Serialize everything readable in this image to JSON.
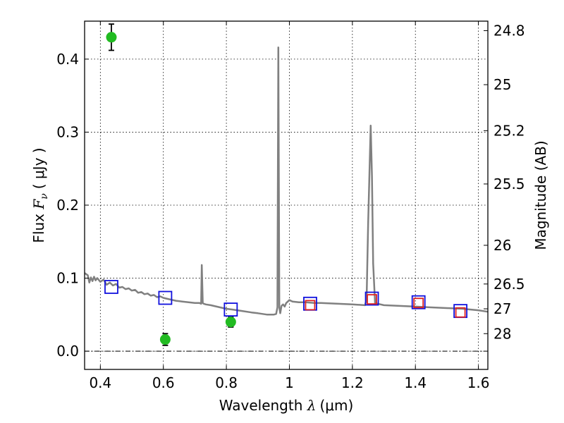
{
  "chart_data": {
    "type": "scatter",
    "title": "",
    "xlabel": "Wavelength  λ (μm)",
    "xlabel_parts": {
      "prefix": "Wavelength  ",
      "symbol": "λ",
      "unit": "(μm)"
    },
    "ylabel": "Flux  Fν ( μJy )",
    "ylabel_parts": {
      "prefix": "Flux  ",
      "symbol": "F",
      "subscript": "ν",
      "unit": "( μJy )"
    },
    "y2label": "Magnitude (AB)",
    "xlim": [
      0.35,
      1.63
    ],
    "ylim": [
      -0.025,
      0.452
    ],
    "grid": true,
    "x_ticks": [
      0.4,
      0.6,
      0.8,
      1.0,
      1.2,
      1.4,
      1.6
    ],
    "x_tick_labels": [
      "0.4",
      "0.6",
      "0.8",
      "1",
      "1.2",
      "1.4",
      "1.6"
    ],
    "y_ticks": [
      0.0,
      0.1,
      0.2,
      0.3,
      0.4
    ],
    "y_tick_labels": [
      "0.0",
      "0.1",
      "0.2",
      "0.3",
      "0.4"
    ],
    "y2_ticks": [
      {
        "label": "24.8",
        "flux": 0.439
      },
      {
        "label": "25",
        "flux": 0.365
      },
      {
        "label": "25.2",
        "flux": 0.302
      },
      {
        "label": "25.5",
        "flux": 0.229
      },
      {
        "label": "26",
        "flux": 0.145
      },
      {
        "label": "26.5",
        "flux": 0.092
      },
      {
        "label": "27",
        "flux": 0.058
      },
      {
        "label": "28",
        "flux": 0.024
      }
    ],
    "series": [
      {
        "name": "model spectrum",
        "kind": "line",
        "color": "#808080",
        "x": [
          0.35,
          0.36,
          0.365,
          0.37,
          0.375,
          0.38,
          0.385,
          0.39,
          0.4,
          0.41,
          0.42,
          0.43,
          0.44,
          0.45,
          0.46,
          0.47,
          0.48,
          0.49,
          0.5,
          0.51,
          0.52,
          0.53,
          0.54,
          0.55,
          0.56,
          0.57,
          0.58,
          0.59,
          0.6,
          0.62,
          0.64,
          0.66,
          0.68,
          0.7,
          0.715,
          0.72,
          0.722,
          0.725,
          0.728,
          0.735,
          0.75,
          0.78,
          0.8,
          0.82,
          0.85,
          0.88,
          0.9,
          0.93,
          0.95,
          0.958,
          0.962,
          0.965,
          0.968,
          0.971,
          0.975,
          0.98,
          0.985,
          0.99,
          1.0,
          1.01,
          1.03,
          1.05,
          1.08,
          1.1,
          1.15,
          1.2,
          1.24,
          1.245,
          1.25,
          1.258,
          1.262,
          1.266,
          1.272,
          1.28,
          1.3,
          1.35,
          1.4,
          1.45,
          1.5,
          1.55,
          1.6,
          1.63
        ],
        "values": [
          0.107,
          0.104,
          0.094,
          0.101,
          0.096,
          0.102,
          0.097,
          0.1,
          0.095,
          0.098,
          0.091,
          0.094,
          0.09,
          0.092,
          0.087,
          0.088,
          0.085,
          0.086,
          0.083,
          0.084,
          0.08,
          0.081,
          0.078,
          0.079,
          0.076,
          0.077,
          0.074,
          0.075,
          0.073,
          0.071,
          0.069,
          0.068,
          0.067,
          0.066,
          0.066,
          0.065,
          0.118,
          0.066,
          0.065,
          0.064,
          0.063,
          0.06,
          0.058,
          0.057,
          0.055,
          0.053,
          0.052,
          0.05,
          0.05,
          0.051,
          0.06,
          0.416,
          0.06,
          0.052,
          0.062,
          0.064,
          0.061,
          0.066,
          0.07,
          0.068,
          0.067,
          0.067,
          0.066,
          0.066,
          0.065,
          0.064,
          0.063,
          0.071,
          0.175,
          0.309,
          0.24,
          0.12,
          0.066,
          0.065,
          0.063,
          0.062,
          0.061,
          0.06,
          0.059,
          0.058,
          0.056,
          0.054
        ]
      },
      {
        "name": "photometry (observed)",
        "kind": "points",
        "marker": "circle",
        "color": "#22bb22",
        "x": [
          0.435,
          0.606,
          0.814
        ],
        "values": [
          0.43,
          0.016,
          0.04
        ],
        "errors": [
          0.018,
          0.008,
          0.007
        ]
      },
      {
        "name": "model photometry (blue)",
        "kind": "points",
        "marker": "square",
        "color": "#1010dd",
        "x": [
          0.435,
          0.606,
          0.814,
          1.066,
          1.262,
          1.41,
          1.543
        ],
        "values": [
          0.088,
          0.073,
          0.057,
          0.065,
          0.072,
          0.067,
          0.055
        ]
      },
      {
        "name": "model photometry (red)",
        "kind": "points",
        "marker": "square",
        "color": "#dd2222",
        "x": [
          1.066,
          1.262,
          1.41,
          1.543
        ],
        "values": [
          0.063,
          0.071,
          0.066,
          0.053
        ]
      }
    ]
  }
}
